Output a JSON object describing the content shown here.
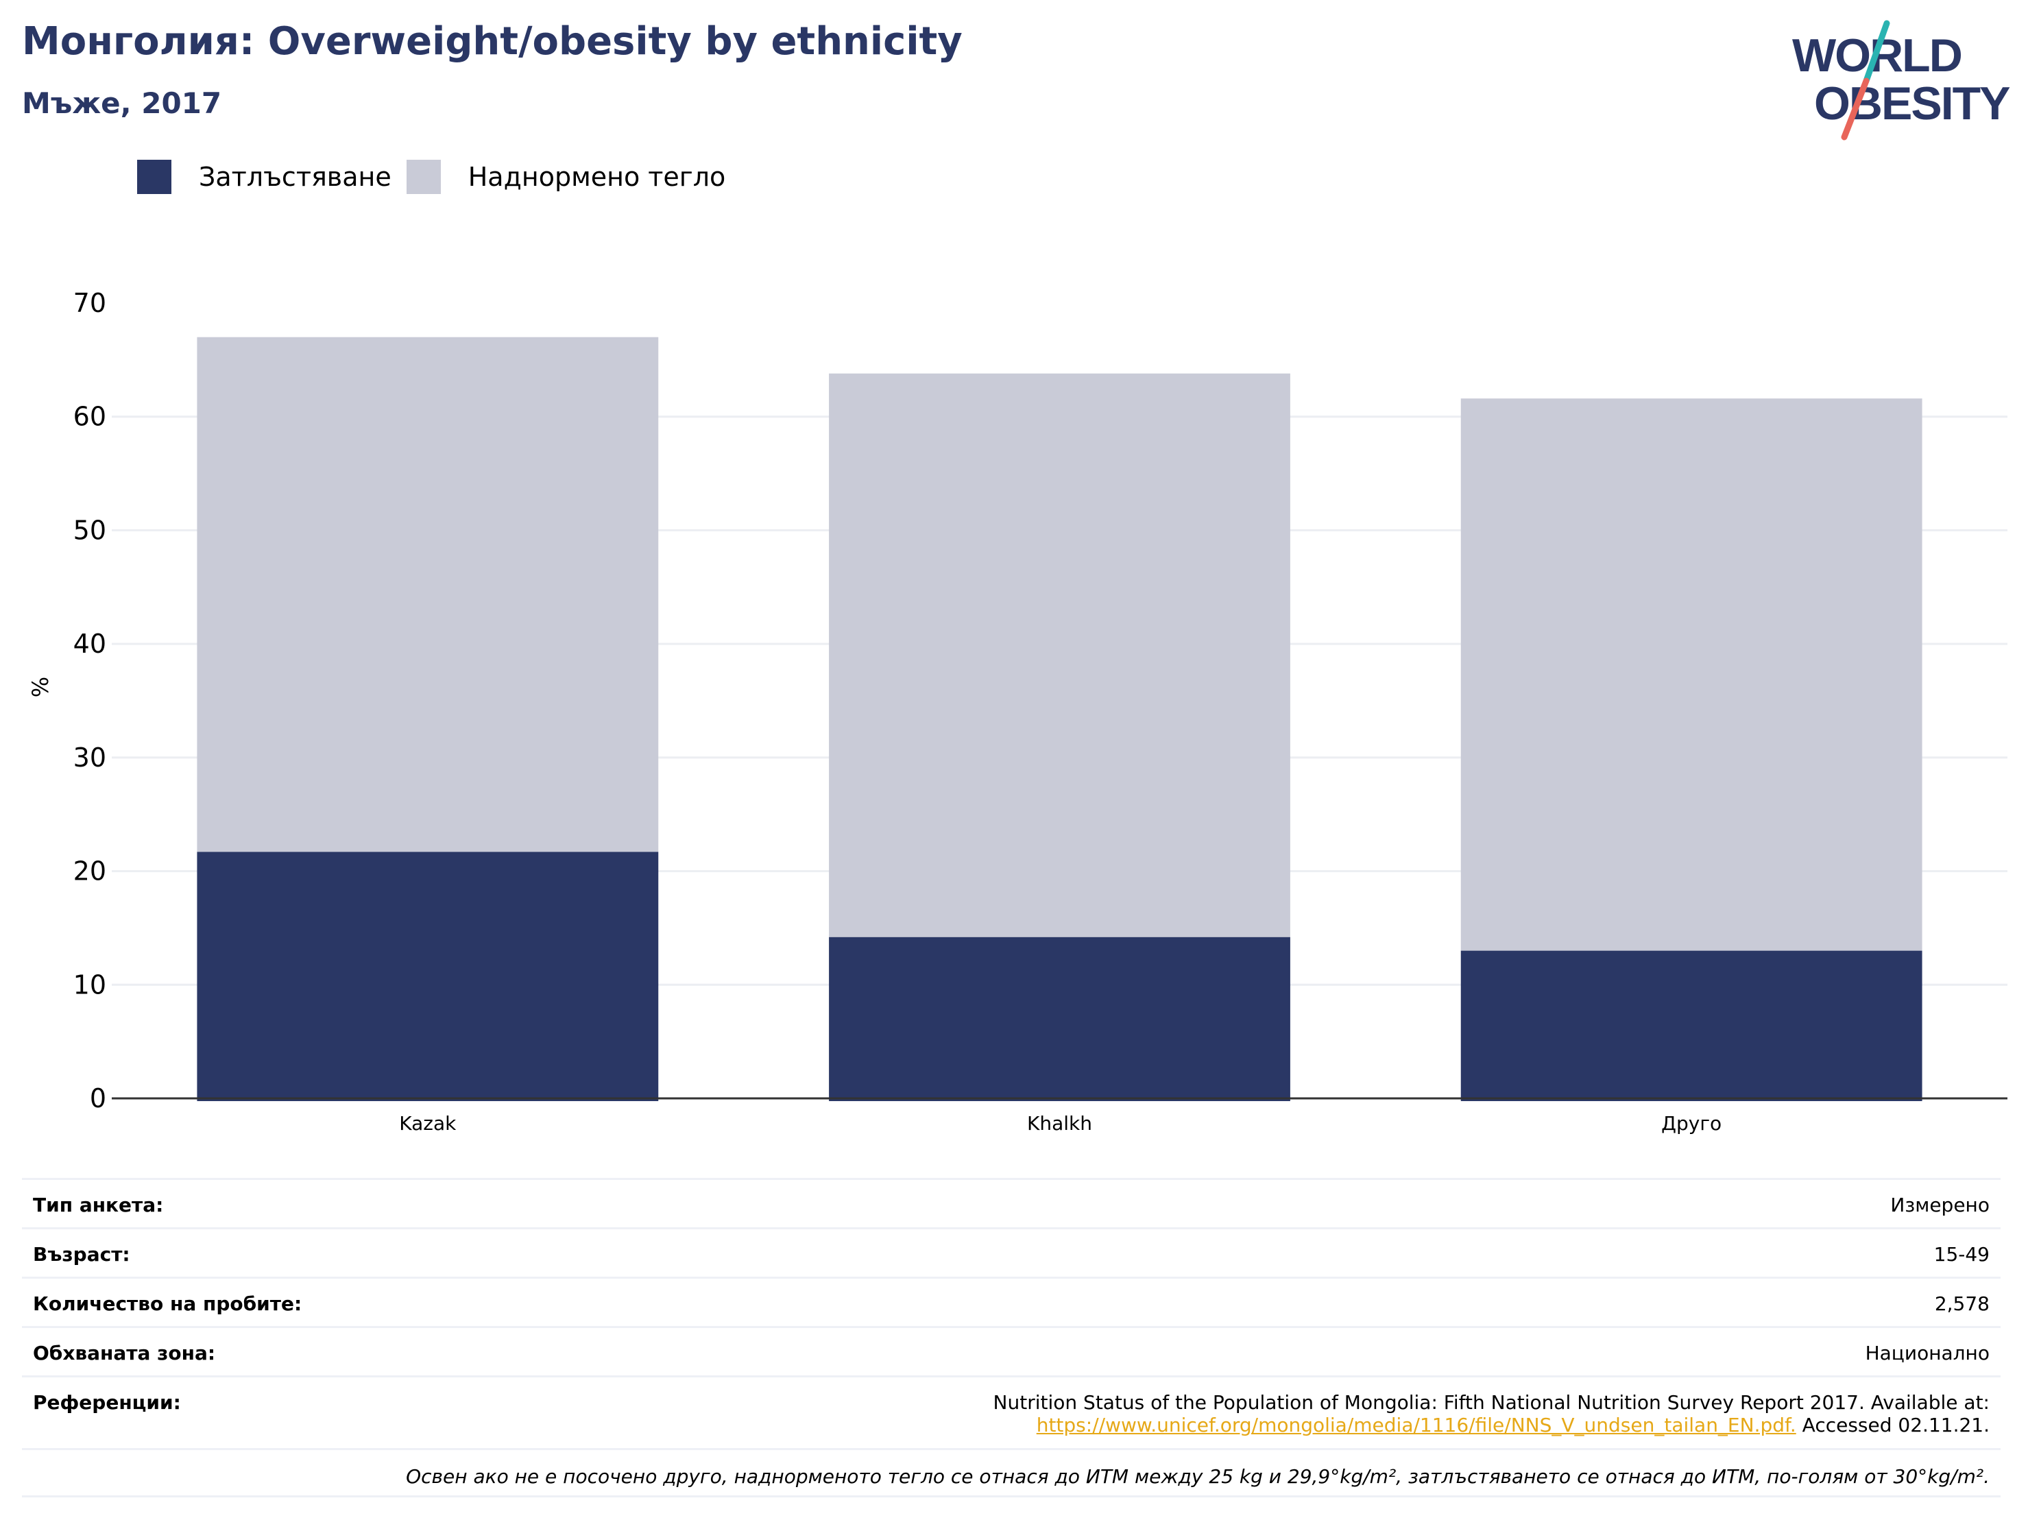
{
  "header": {
    "title": "Монголия: Overweight/obesity by ethnicity",
    "subtitle": "Мъже, 2017"
  },
  "logo": {
    "line1": "WORLD",
    "line2": "OBESITY",
    "colors": {
      "text": "#2a3765",
      "slash_top": "#2ab3b1",
      "slash_bottom": "#e8655a"
    }
  },
  "colors": {
    "obesity": "#2a3765",
    "overweight": "#c9cbd7",
    "grid": "#eceef2",
    "axis": "#333333"
  },
  "legend": [
    {
      "label": "Затлъстяване",
      "color": "#2a3765"
    },
    {
      "label": "Наднормено тегло",
      "color": "#c9cbd7"
    }
  ],
  "chart_data": {
    "type": "bar",
    "stacked": true,
    "categories": [
      "Kazak",
      "Khalkh",
      "Друго"
    ],
    "series": [
      {
        "name": "Затлъстяване",
        "values": [
          21.7,
          14.2,
          13.0
        ]
      },
      {
        "name": "Наднормено тегло",
        "values": [
          45.3,
          49.6,
          48.6
        ]
      }
    ],
    "totals": [
      67.0,
      63.8,
      61.6
    ],
    "ylabel": "%",
    "ylim": [
      0,
      70
    ],
    "yticks": [
      0,
      10,
      20,
      30,
      40,
      50,
      60,
      70
    ],
    "grid": true,
    "legend_position": "top-left"
  },
  "info": {
    "survey_type": {
      "label": "Тип анкета:",
      "value": "Измерено"
    },
    "age": {
      "label": "Възраст:",
      "value": "15-49"
    },
    "sample_size": {
      "label": "Количество на пробите:",
      "value": "2,578"
    },
    "coverage": {
      "label": "Обхваната зона:",
      "value": "Национално"
    },
    "references": {
      "label": "Референции:",
      "text": "Nutrition Status of the Population of Mongolia: Fifth National Nutrition Survey Report 2017. Available at:",
      "link": "https://www.unicef.org/mongolia/media/1116/file/NNS_V_undsen_tailan_EN.pdf.",
      "accessed": "Accessed 02.11.21."
    },
    "note": "Освен ако не е посочено друго, наднорменото тегло се отнася до ИТМ между 25 kg и 29,9°kg/m², затлъстяването се отнася до ИТМ, по-голям от 30°kg/m²."
  }
}
